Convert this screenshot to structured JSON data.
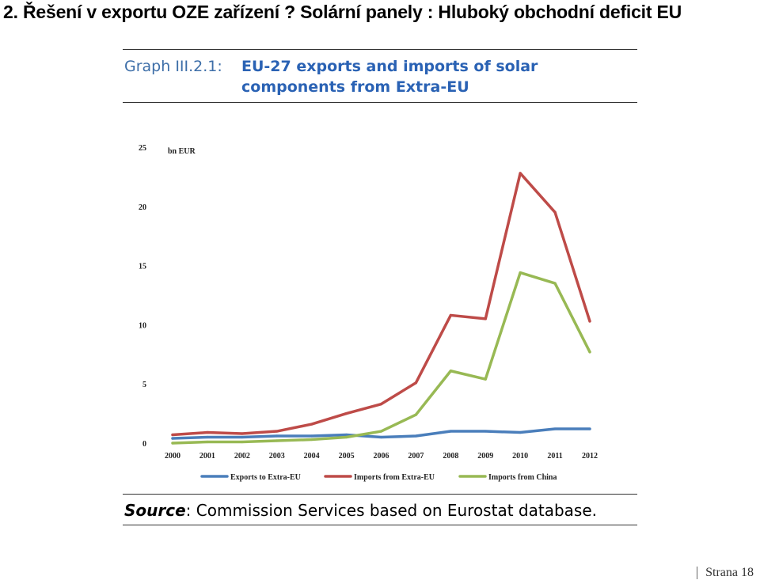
{
  "slide": {
    "title": "2. Řešení v exportu OZE zařízení ? Solární panely : Hluboký obchodní deficit EU",
    "page_number": "Strana 18"
  },
  "graph": {
    "id": "Graph III.2.1:",
    "caption": "EU-27 exports and imports of solar components from Extra-EU"
  },
  "source": {
    "label": "Source",
    "text": ": Commission Services based on Eurostat database."
  },
  "chart_data": {
    "type": "line",
    "unit_label": "bn EUR",
    "title": "",
    "xlabel": "",
    "ylabel": "",
    "categories": [
      "2000",
      "2001",
      "2002",
      "2003",
      "2004",
      "2005",
      "2006",
      "2007",
      "2008",
      "2009",
      "2010",
      "2011",
      "2012"
    ],
    "ylim": [
      0,
      25
    ],
    "y_ticks": [
      0,
      5,
      10,
      15,
      20,
      25
    ],
    "grid": false,
    "legend_position": "bottom",
    "series": [
      {
        "name": "Exports to Extra-EU",
        "color": "#4a7ebb",
        "values": [
          0.4,
          0.5,
          0.5,
          0.6,
          0.6,
          0.7,
          0.5,
          0.6,
          1.0,
          1.0,
          0.9,
          1.2,
          1.2
        ]
      },
      {
        "name": "Imports from Extra-EU",
        "color": "#be4b48",
        "values": [
          0.7,
          0.9,
          0.8,
          1.0,
          1.6,
          2.5,
          3.3,
          5.1,
          10.8,
          10.5,
          22.8,
          19.5,
          10.3
        ]
      },
      {
        "name": "Imports from China",
        "color": "#98b954",
        "values": [
          0.0,
          0.1,
          0.1,
          0.2,
          0.3,
          0.5,
          1.0,
          2.4,
          6.1,
          5.4,
          14.4,
          13.5,
          7.7
        ]
      }
    ]
  }
}
